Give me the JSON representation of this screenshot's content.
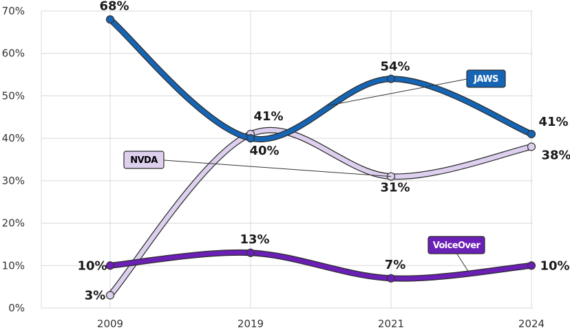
{
  "chart_data": {
    "type": "line",
    "title": "",
    "xlabel": "",
    "ylabel": "",
    "categories": [
      "2009",
      "2019",
      "2021",
      "2024"
    ],
    "ylim": [
      0,
      70
    ],
    "yticks": [
      "0%",
      "10%",
      "20%",
      "30%",
      "40%",
      "50%",
      "60%",
      "70%"
    ],
    "grid": true,
    "series": [
      {
        "name": "NVDA",
        "values": [
          3,
          41,
          31,
          38
        ],
        "labels": [
          "3%",
          "41%",
          "31%",
          "38%"
        ],
        "color": "#ddd0ee",
        "label_color": "#000000"
      },
      {
        "name": "JAWS",
        "values": [
          68,
          40,
          54,
          41
        ],
        "labels": [
          "68%",
          "40%",
          "54%",
          "41%"
        ],
        "color": "#1565b4",
        "label_color": "#ffffff"
      },
      {
        "name": "VoiceOver",
        "values": [
          10,
          13,
          7,
          10
        ],
        "labels": [
          "10%",
          "13%",
          "7%",
          "10%"
        ],
        "color": "#6a1fb5",
        "label_color": "#ffffff"
      }
    ]
  }
}
